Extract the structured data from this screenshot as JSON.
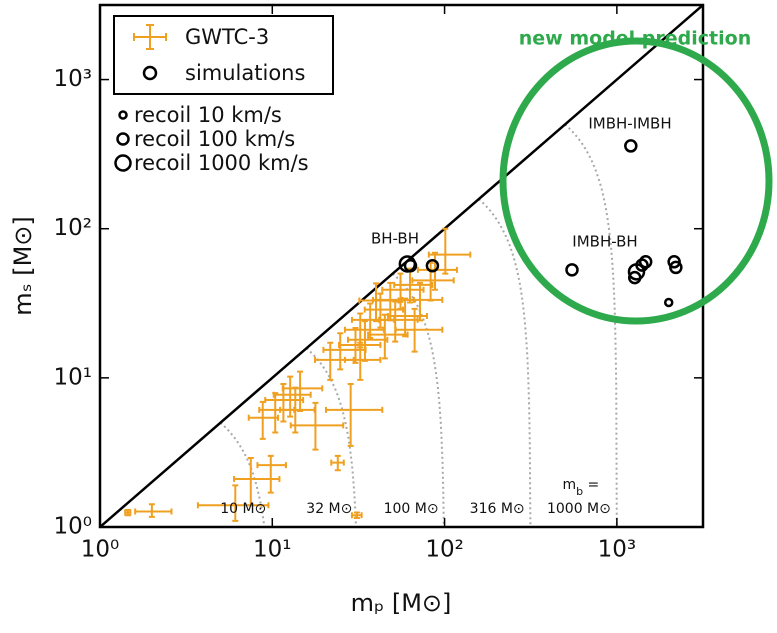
{
  "chart_data": {
    "type": "scatter",
    "xlabel": "mₚ [M⊙]",
    "ylabel": "mₛ [M⊙]",
    "log_x": true,
    "log_y": true,
    "xlim": [
      1,
      3162
    ],
    "ylim": [
      1,
      3162
    ],
    "xticks": [
      {
        "value": 1,
        "label": "10⁰"
      },
      {
        "value": 10,
        "label": "10¹"
      },
      {
        "value": 100,
        "label": "10²"
      },
      {
        "value": 1000,
        "label": "10³"
      }
    ],
    "yticks": [
      {
        "value": 1,
        "label": "10⁰"
      },
      {
        "value": 10,
        "label": "10¹"
      },
      {
        "value": 100,
        "label": "10²"
      },
      {
        "value": 1000,
        "label": "10³"
      }
    ],
    "series": [
      {
        "name": "GWTC-3",
        "color": "#f0a020",
        "x": [
          1.45,
          2.0,
          6.1,
          7.5,
          9.8,
          24,
          31,
          11.6,
          12.7,
          10.4,
          14.5,
          8.8,
          13.6,
          17.8,
          28.5,
          21.7,
          24.8,
          30.4,
          32.4,
          37,
          42.4,
          34.5,
          48.4,
          55.5,
          63,
          51.7,
          72,
          83,
          101,
          88,
          40,
          45,
          59,
          67,
          32.4
        ],
        "values": [
          1.25,
          1.27,
          1.4,
          2.1,
          2.6,
          2.7,
          1.2,
          7.1,
          7.7,
          6.1,
          8.5,
          5.4,
          6.1,
          4.8,
          6.1,
          13.2,
          15.4,
          16.6,
          21,
          24.5,
          28.7,
          18,
          33.3,
          39,
          42,
          24.5,
          33.3,
          45,
          67,
          53,
          33,
          19.5,
          26,
          21,
          13.2
        ],
        "xerr_minus": [
          0.05,
          0.4,
          2.4,
          1.5,
          1.6,
          2,
          2,
          2.5,
          2.5,
          2,
          3,
          1.5,
          2.5,
          5,
          8,
          4,
          5,
          6,
          6,
          8,
          8,
          7,
          10,
          12,
          12,
          10,
          15,
          18,
          20,
          18,
          8,
          9,
          12,
          15,
          6
        ],
        "xerr_plus": [
          0.05,
          0.6,
          3.4,
          3.5,
          2.2,
          2,
          2,
          3.5,
          4,
          3,
          5,
          2,
          4,
          8,
          15,
          8,
          10,
          12,
          12,
          14,
          15,
          12,
          18,
          20,
          22,
          18,
          25,
          30,
          40,
          30,
          14,
          16,
          20,
          30,
          10
        ],
        "yerr_minus": [
          0.05,
          0.1,
          0.3,
          0.7,
          0.9,
          0.3,
          0.05,
          2,
          2.2,
          1.8,
          2.5,
          1.5,
          1.8,
          1.5,
          2.6,
          3.5,
          4,
          4,
          5,
          6,
          7,
          5,
          9,
          10,
          10,
          7,
          9,
          12,
          17,
          14,
          9,
          6,
          7,
          6,
          3.5
        ],
        "yerr_plus": [
          0.05,
          0.15,
          0.5,
          0.8,
          0.4,
          0.3,
          0.05,
          2,
          2.5,
          1.8,
          2.5,
          1.5,
          2.5,
          2,
          3,
          4,
          4.5,
          5,
          6,
          7,
          8,
          6,
          10,
          11,
          12,
          8,
          10,
          14,
          33,
          16,
          10,
          7,
          8,
          8,
          4
        ]
      },
      {
        "name": "simulations",
        "color": "#000000",
        "x": [
          60.8,
          63.4,
          85,
          549,
          1205,
          1270,
          1300,
          1400,
          1470,
          2150,
          2200,
          2000
        ],
        "values": [
          58,
          56.5,
          56.5,
          53,
          359,
          47,
          51.4,
          57,
          60,
          60,
          55,
          32
        ],
        "recoil": [
          1000,
          100,
          100,
          100,
          100,
          100,
          1000,
          100,
          100,
          100,
          100,
          10
        ]
      }
    ],
    "size_legend": {
      "values": [
        10,
        100,
        1000
      ],
      "labels": [
        "recoil 10 km/s",
        "recoil 100 km/s",
        "recoil 1000 km/s"
      ]
    },
    "reference_curves": {
      "values": [
        10,
        31.6,
        100,
        316,
        1000
      ],
      "labels": [
        "10 M⊙",
        "32 M⊙",
        "100 M⊙",
        "316 M⊙",
        "1000 M⊙"
      ],
      "prefix": {
        "symbol": "m",
        "subscript": "b",
        "tail": " ="
      }
    },
    "annotations": [
      "BH-BH",
      "IMBH-BH",
      "IMBH-IMBH",
      "new model prediction"
    ]
  }
}
